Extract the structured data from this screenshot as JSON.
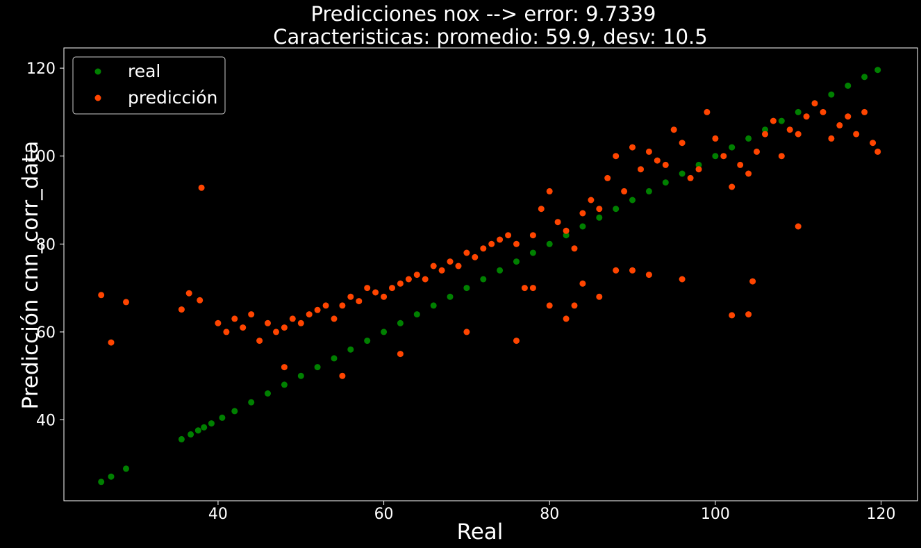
{
  "chart_data": {
    "type": "scatter",
    "title_line1": "Predicciones nox --> error: 9.7339",
    "title_line2": "Caracteristicas: promedio: 59.9, desv: 10.5",
    "xlabel": "Real",
    "ylabel": "Predicción cnn_corr_data",
    "xlim": [
      21.4,
      124.4
    ],
    "ylim": [
      21.6,
      124.6
    ],
    "xticks": [
      40,
      60,
      80,
      100,
      120
    ],
    "yticks": [
      40,
      60,
      80,
      100,
      120
    ],
    "grid": false,
    "legend_position": "top-left",
    "series": [
      {
        "name": "real",
        "color": "#008000",
        "x": [
          25.9,
          27.1,
          28.9,
          35.6,
          36.7,
          37.6,
          38.3,
          39.2,
          40.5,
          42,
          44,
          46,
          48,
          50,
          52,
          54,
          56,
          58,
          60,
          62,
          64,
          66,
          68,
          70,
          72,
          74,
          76,
          78,
          80,
          82,
          84,
          86,
          88,
          90,
          92,
          94,
          96,
          98,
          100,
          102,
          104,
          106,
          108,
          110,
          112,
          114,
          116,
          118,
          119.6
        ],
        "y": [
          25.9,
          27.1,
          28.9,
          35.6,
          36.7,
          37.6,
          38.3,
          39.2,
          40.5,
          42,
          44,
          46,
          48,
          50,
          52,
          54,
          56,
          58,
          60,
          62,
          64,
          66,
          68,
          70,
          72,
          74,
          76,
          78,
          80,
          82,
          84,
          86,
          88,
          90,
          92,
          94,
          96,
          98,
          100,
          102,
          104,
          106,
          108,
          110,
          112,
          114,
          116,
          118,
          119.6
        ]
      },
      {
        "name": "predicción",
        "color": "#ff4500",
        "x": [
          25.9,
          27.1,
          28.9,
          35.6,
          36.5,
          37.8,
          38,
          40,
          41,
          42,
          43,
          44,
          45,
          46,
          47,
          48,
          49,
          50,
          51,
          52,
          53,
          54,
          55,
          56,
          57,
          58,
          59,
          60,
          61,
          62,
          63,
          64,
          65,
          66,
          67,
          68,
          69,
          70,
          71,
          72,
          73,
          74,
          75,
          76,
          77,
          78,
          79,
          80,
          81,
          82,
          83,
          84,
          85,
          86,
          87,
          88,
          89,
          90,
          91,
          92,
          93,
          94,
          95,
          96,
          97,
          98,
          99,
          100,
          101,
          102,
          103,
          104,
          105,
          106,
          107,
          108,
          109,
          110,
          111,
          112,
          113,
          114,
          115,
          116,
          117,
          118,
          119,
          119.6,
          48,
          55,
          62,
          70,
          76,
          83,
          90,
          96,
          104,
          110,
          86,
          88,
          92,
          80,
          84,
          78,
          82,
          104.5,
          102
        ],
        "y": [
          68.4,
          57.6,
          66.8,
          65.1,
          68.8,
          67.2,
          92.8,
          62,
          60,
          63,
          61,
          64,
          58,
          62,
          60,
          61,
          63,
          62,
          64,
          65,
          66,
          63,
          66,
          68,
          67,
          70,
          69,
          68,
          70,
          71,
          72,
          73,
          72,
          75,
          74,
          76,
          75,
          78,
          77,
          79,
          80,
          81,
          82,
          80,
          70,
          82,
          88,
          92,
          85,
          83,
          79,
          87,
          90,
          88,
          95,
          100,
          92,
          102,
          97,
          101,
          99,
          98,
          106,
          103,
          95,
          97,
          110,
          104,
          100,
          93,
          98,
          96,
          101,
          105,
          108,
          100,
          106,
          105,
          109,
          112,
          110,
          104,
          107,
          109,
          105,
          110,
          103,
          101,
          52,
          50,
          55,
          60,
          58,
          66,
          74,
          72,
          64,
          84,
          68,
          74,
          73,
          66,
          71,
          70,
          63,
          71.5,
          63.8
        ]
      }
    ]
  }
}
